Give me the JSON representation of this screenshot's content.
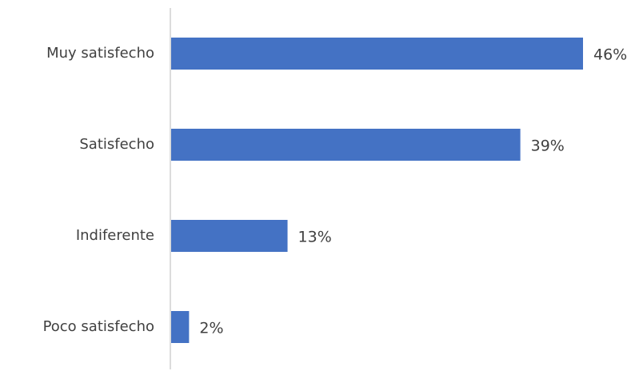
{
  "chart_data": {
    "type": "bar",
    "orientation": "horizontal",
    "title": "",
    "xlabel": "",
    "ylabel": "",
    "categories": [
      "Muy satisfecho",
      "Satisfecho",
      "Indiferente",
      "Poco satisfecho"
    ],
    "values": [
      46,
      39,
      13,
      2
    ],
    "value_labels": [
      "46%",
      "39%",
      "13%",
      "2%"
    ],
    "unit": "%",
    "xlim": [
      0,
      46
    ],
    "grid": false,
    "legend": "none",
    "bar_color": "#4472c4"
  }
}
